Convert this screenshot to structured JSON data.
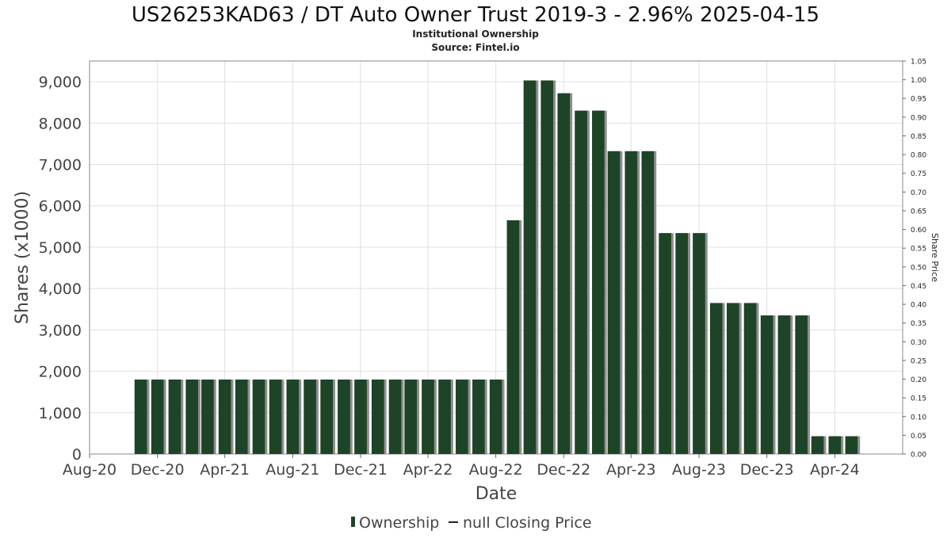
{
  "chart_data": {
    "type": "bar",
    "title": "US26253KAD63 / DT Auto Owner Trust 2019-3 - 2.96% 2025-04-15",
    "subtitle": "Institutional Ownership",
    "source": "Source: Fintel.io",
    "xlabel": "Date",
    "ylabel": "Shares (x1000)",
    "y2label": "Share Price",
    "ylim": [
      0,
      9500
    ],
    "yticks": [
      0,
      1000,
      2000,
      3000,
      4000,
      5000,
      6000,
      7000,
      8000,
      9000
    ],
    "ytick_labels": [
      "0",
      "1,000",
      "2,000",
      "3,000",
      "4,000",
      "5,000",
      "6,000",
      "7,000",
      "8,000",
      "9,000"
    ],
    "y2lim": [
      0,
      1.05
    ],
    "y2ticks": [
      "0.00",
      "0.05",
      "0.10",
      "0.15",
      "0.20",
      "0.25",
      "0.30",
      "0.35",
      "0.40",
      "0.45",
      "0.50",
      "0.55",
      "0.60",
      "0.65",
      "0.70",
      "0.75",
      "0.80",
      "0.85",
      "0.90",
      "0.95",
      "1.00",
      "1.05"
    ],
    "xlim": [
      "2020-08-01",
      "2024-08-01"
    ],
    "xticks": [
      {
        "date": "2020-08-01",
        "label": "Aug-20"
      },
      {
        "date": "2020-12-01",
        "label": "Dec-20"
      },
      {
        "date": "2021-04-01",
        "label": "Apr-21"
      },
      {
        "date": "2021-08-01",
        "label": "Aug-21"
      },
      {
        "date": "2021-12-01",
        "label": "Dec-21"
      },
      {
        "date": "2022-04-01",
        "label": "Apr-22"
      },
      {
        "date": "2022-08-01",
        "label": "Aug-22"
      },
      {
        "date": "2022-12-01",
        "label": "Dec-22"
      },
      {
        "date": "2023-04-01",
        "label": "Apr-23"
      },
      {
        "date": "2023-08-01",
        "label": "Aug-23"
      },
      {
        "date": "2023-12-01",
        "label": "Dec-23"
      },
      {
        "date": "2024-04-01",
        "label": "Apr-24"
      }
    ],
    "grid": true,
    "legend_position": "bottom",
    "series": [
      {
        "name": "Ownership",
        "color": "#1e4428",
        "x": [
          "2020-11-01",
          "2020-12-01",
          "2021-01-01",
          "2021-02-01",
          "2021-03-01",
          "2021-04-01",
          "2021-05-01",
          "2021-06-01",
          "2021-07-01",
          "2021-08-01",
          "2021-09-01",
          "2021-10-01",
          "2021-11-01",
          "2021-12-01",
          "2022-01-01",
          "2022-02-01",
          "2022-03-01",
          "2022-04-01",
          "2022-05-01",
          "2022-06-01",
          "2022-07-01",
          "2022-08-01",
          "2022-09-01",
          "2022-10-01",
          "2022-11-01",
          "2022-12-01",
          "2023-01-01",
          "2023-02-01",
          "2023-03-01",
          "2023-04-01",
          "2023-05-01",
          "2023-06-01",
          "2023-07-01",
          "2023-08-01",
          "2023-09-01",
          "2023-10-01",
          "2023-11-01",
          "2023-12-01",
          "2024-01-01",
          "2024-02-01",
          "2024-03-01",
          "2024-04-01",
          "2024-05-01"
        ],
        "values": [
          1800,
          1800,
          1800,
          1800,
          1800,
          1800,
          1800,
          1800,
          1800,
          1800,
          1800,
          1800,
          1800,
          1800,
          1800,
          1800,
          1800,
          1800,
          1800,
          1800,
          1800,
          1800,
          5650,
          9030,
          9030,
          8720,
          8300,
          8300,
          7320,
          7320,
          7320,
          5340,
          5340,
          5340,
          3650,
          3650,
          3650,
          3350,
          3350,
          3350,
          430,
          430,
          430
        ]
      },
      {
        "name": "null Closing Price",
        "color": "#222222",
        "values": []
      }
    ]
  }
}
